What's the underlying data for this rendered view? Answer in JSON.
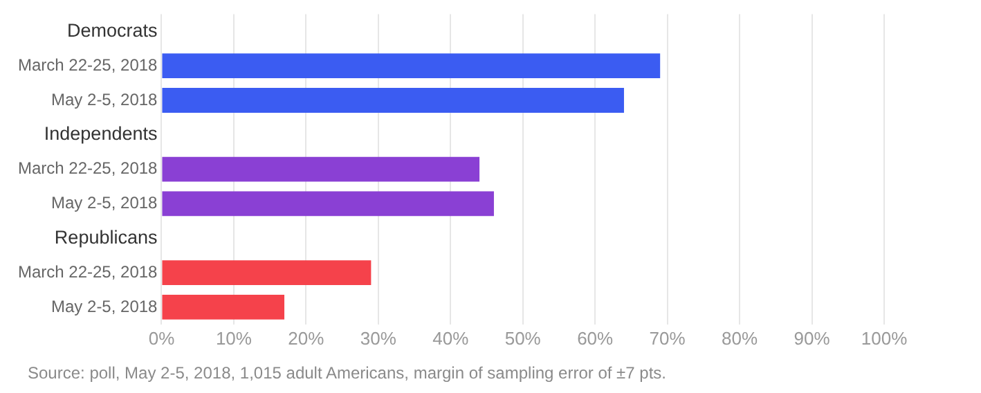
{
  "chart_data": {
    "type": "bar",
    "orientation": "horizontal",
    "categories": [
      "Democrats",
      "March 22-25, 2018",
      "May 2-5, 2018",
      "Independents",
      "March 22-25, 2018",
      "May 2-5, 2018",
      "Republicans",
      "March 22-25, 2018",
      "May 2-5, 2018"
    ],
    "values": [
      null,
      69,
      64,
      null,
      44,
      46,
      null,
      29,
      17
    ],
    "colors": [
      "#3b5cf2",
      "#3b5cf2",
      "#3b5cf2",
      "#8a40d4",
      "#8a40d4",
      "#8a40d4",
      "#f5424b",
      "#f5424b",
      "#f5424b"
    ],
    "xlim": [
      0,
      100
    ],
    "xticks": [
      {
        "value": 0,
        "label": "0%"
      },
      {
        "value": 10,
        "label": "10%"
      },
      {
        "value": 20,
        "label": "20%"
      },
      {
        "value": 30,
        "label": "30%"
      },
      {
        "value": 40,
        "label": "40%"
      },
      {
        "value": 50,
        "label": "50%"
      },
      {
        "value": 60,
        "label": "60%"
      },
      {
        "value": 70,
        "label": "70%"
      },
      {
        "value": 80,
        "label": "80%"
      },
      {
        "value": 90,
        "label": "90%"
      },
      {
        "value": 100,
        "label": "100%"
      }
    ],
    "grid": "x",
    "annotations": [
      "Source: poll, May 2-5, 2018, 1,015 adult Americans, margin of sampling error of ±7 pts."
    ]
  }
}
